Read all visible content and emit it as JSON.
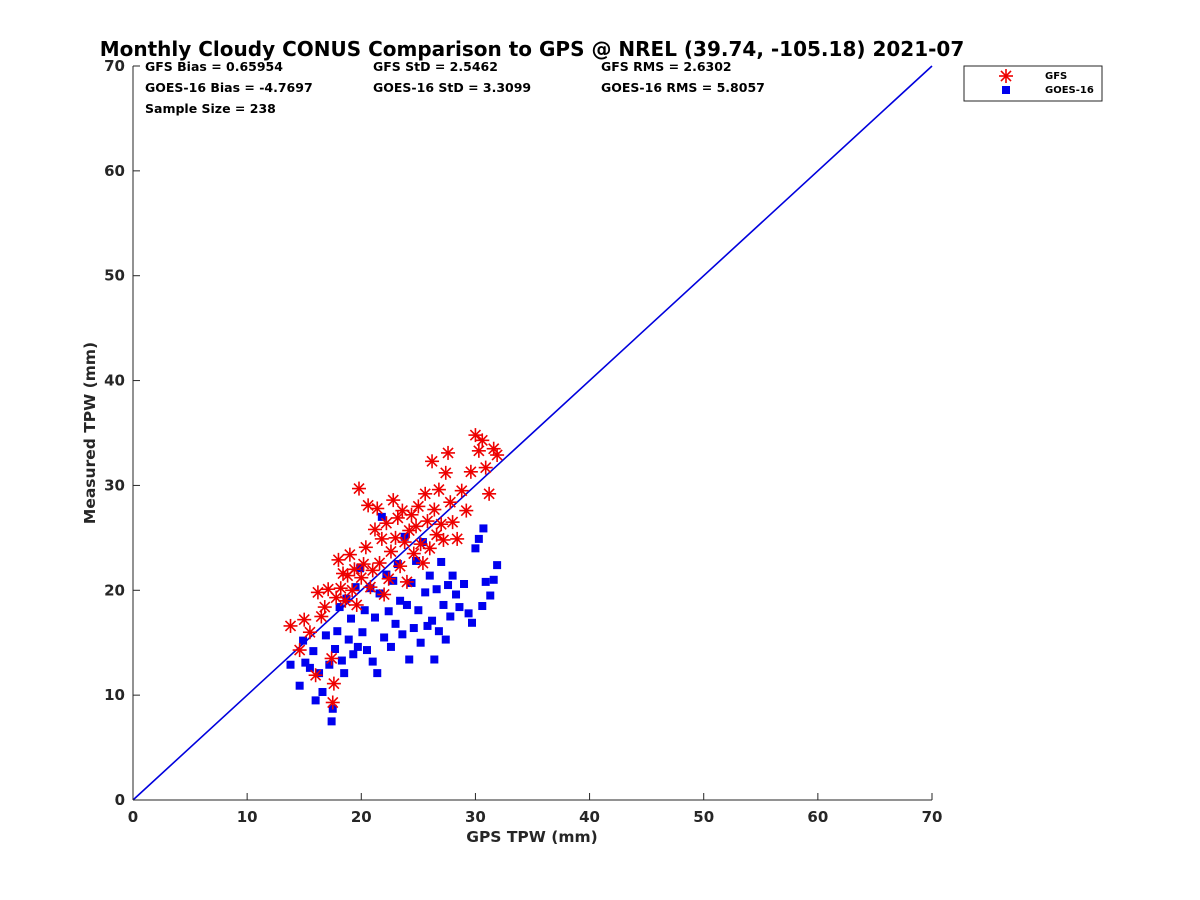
{
  "chart_data": {
    "type": "scatter",
    "title": "Monthly Cloudy CONUS Comparison to GPS @ NREL (39.74, -105.18) 2021-07",
    "xlabel": "GPS TPW (mm)",
    "ylabel": "Measured TPW (mm)",
    "xlim": [
      0,
      70
    ],
    "ylim": [
      0,
      70
    ],
    "xticks": [
      "0",
      "10",
      "20",
      "30",
      "40",
      "50",
      "60",
      "70"
    ],
    "yticks": [
      "0",
      "10",
      "20",
      "30",
      "40",
      "50",
      "60",
      "70"
    ],
    "grid": false,
    "legend_position": "top-right",
    "stats": {
      "gfs_bias": "GFS Bias = 0.65954",
      "gfs_std": "GFS StD = 2.5462",
      "gfs_rms": "GFS RMS = 2.6302",
      "goes_bias": "GOES-16 Bias = -4.7697",
      "goes_std": "GOES-16 StD = 3.3099",
      "goes_rms": "GOES-16 RMS = 5.8057",
      "sample_size": "Sample Size = 238"
    },
    "reference_line": {
      "x": [
        0,
        70
      ],
      "y": [
        0,
        70
      ],
      "color": "#0000dd"
    },
    "series": [
      {
        "name": "GFS",
        "marker": "asterisk",
        "color": "#ee0000",
        "points": [
          [
            13.8,
            16.6
          ],
          [
            14.6,
            14.3
          ],
          [
            15.0,
            17.2
          ],
          [
            15.5,
            16.0
          ],
          [
            16.0,
            11.9
          ],
          [
            16.2,
            19.8
          ],
          [
            16.5,
            17.5
          ],
          [
            16.8,
            18.4
          ],
          [
            17.1,
            20.1
          ],
          [
            17.4,
            13.5
          ],
          [
            17.5,
            9.3
          ],
          [
            17.6,
            11.1
          ],
          [
            17.8,
            19.3
          ],
          [
            18.0,
            22.9
          ],
          [
            18.2,
            20.2
          ],
          [
            18.4,
            21.6
          ],
          [
            18.6,
            19.0
          ],
          [
            18.8,
            21.4
          ],
          [
            19.0,
            23.4
          ],
          [
            19.2,
            20.0
          ],
          [
            19.4,
            22.0
          ],
          [
            19.6,
            18.6
          ],
          [
            19.8,
            29.7
          ],
          [
            20.0,
            21.2
          ],
          [
            20.2,
            22.5
          ],
          [
            20.4,
            24.1
          ],
          [
            20.6,
            28.1
          ],
          [
            20.8,
            20.3
          ],
          [
            21.0,
            21.9
          ],
          [
            21.2,
            25.8
          ],
          [
            21.4,
            27.8
          ],
          [
            21.6,
            22.6
          ],
          [
            21.8,
            24.9
          ],
          [
            22.0,
            19.6
          ],
          [
            22.2,
            26.4
          ],
          [
            22.4,
            21.1
          ],
          [
            22.6,
            23.7
          ],
          [
            22.8,
            28.6
          ],
          [
            23.0,
            25.0
          ],
          [
            23.2,
            26.9
          ],
          [
            23.4,
            22.3
          ],
          [
            23.6,
            27.6
          ],
          [
            23.8,
            24.6
          ],
          [
            24.0,
            20.8
          ],
          [
            24.2,
            25.7
          ],
          [
            24.4,
            27.2
          ],
          [
            24.6,
            23.5
          ],
          [
            24.8,
            26.1
          ],
          [
            25.0,
            28.0
          ],
          [
            25.2,
            24.4
          ],
          [
            25.4,
            22.6
          ],
          [
            25.6,
            29.2
          ],
          [
            25.8,
            26.6
          ],
          [
            26.0,
            24.0
          ],
          [
            26.2,
            32.3
          ],
          [
            26.4,
            27.7
          ],
          [
            26.6,
            25.3
          ],
          [
            26.8,
            29.6
          ],
          [
            27.0,
            26.3
          ],
          [
            27.2,
            24.8
          ],
          [
            27.4,
            31.2
          ],
          [
            27.6,
            33.1
          ],
          [
            27.8,
            28.4
          ],
          [
            28.0,
            26.5
          ],
          [
            28.4,
            24.9
          ],
          [
            28.8,
            29.5
          ],
          [
            29.2,
            27.6
          ],
          [
            29.6,
            31.3
          ],
          [
            30.0,
            34.8
          ],
          [
            30.3,
            33.3
          ],
          [
            30.6,
            34.3
          ],
          [
            30.9,
            31.7
          ],
          [
            31.2,
            29.2
          ],
          [
            31.6,
            33.5
          ],
          [
            31.9,
            32.9
          ]
        ]
      },
      {
        "name": "GOES-16",
        "marker": "square",
        "color": "#0000ee",
        "points": [
          [
            13.8,
            12.9
          ],
          [
            14.6,
            10.9
          ],
          [
            14.9,
            15.2
          ],
          [
            15.1,
            13.1
          ],
          [
            15.5,
            12.6
          ],
          [
            15.8,
            14.2
          ],
          [
            16.0,
            9.5
          ],
          [
            16.3,
            12.1
          ],
          [
            16.6,
            10.3
          ],
          [
            16.9,
            15.7
          ],
          [
            17.2,
            12.9
          ],
          [
            17.4,
            7.5
          ],
          [
            17.5,
            8.7
          ],
          [
            17.7,
            14.4
          ],
          [
            17.9,
            16.1
          ],
          [
            18.1,
            18.4
          ],
          [
            18.3,
            13.3
          ],
          [
            18.5,
            12.1
          ],
          [
            18.7,
            19.2
          ],
          [
            18.9,
            15.3
          ],
          [
            19.1,
            17.3
          ],
          [
            19.3,
            13.9
          ],
          [
            19.5,
            20.3
          ],
          [
            19.7,
            14.6
          ],
          [
            19.9,
            22.1
          ],
          [
            20.1,
            16.0
          ],
          [
            20.3,
            18.1
          ],
          [
            20.5,
            14.3
          ],
          [
            20.8,
            20.2
          ],
          [
            21.0,
            13.2
          ],
          [
            21.2,
            17.4
          ],
          [
            21.4,
            12.1
          ],
          [
            21.6,
            19.7
          ],
          [
            21.8,
            27.0
          ],
          [
            22.0,
            15.5
          ],
          [
            22.2,
            21.5
          ],
          [
            22.4,
            18.0
          ],
          [
            22.6,
            14.6
          ],
          [
            22.8,
            20.9
          ],
          [
            23.0,
            16.8
          ],
          [
            23.2,
            22.5
          ],
          [
            23.4,
            19.0
          ],
          [
            23.6,
            15.8
          ],
          [
            23.8,
            25.1
          ],
          [
            24.0,
            18.6
          ],
          [
            24.2,
            13.4
          ],
          [
            24.4,
            20.7
          ],
          [
            24.6,
            16.4
          ],
          [
            24.8,
            22.8
          ],
          [
            25.0,
            18.1
          ],
          [
            25.2,
            15.0
          ],
          [
            25.4,
            24.6
          ],
          [
            25.6,
            19.8
          ],
          [
            25.8,
            16.6
          ],
          [
            26.0,
            21.4
          ],
          [
            26.2,
            17.1
          ],
          [
            26.4,
            13.4
          ],
          [
            26.6,
            20.1
          ],
          [
            26.8,
            16.1
          ],
          [
            27.0,
            22.7
          ],
          [
            27.2,
            18.6
          ],
          [
            27.4,
            15.3
          ],
          [
            27.6,
            20.5
          ],
          [
            27.8,
            17.5
          ],
          [
            28.0,
            21.4
          ],
          [
            28.3,
            19.6
          ],
          [
            28.6,
            18.4
          ],
          [
            29.0,
            20.6
          ],
          [
            29.4,
            17.8
          ],
          [
            29.7,
            16.9
          ],
          [
            30.0,
            24.0
          ],
          [
            30.3,
            24.9
          ],
          [
            30.6,
            18.5
          ],
          [
            30.9,
            20.8
          ],
          [
            31.3,
            19.5
          ],
          [
            31.6,
            21.0
          ],
          [
            31.9,
            22.4
          ],
          [
            30.7,
            25.9
          ]
        ]
      }
    ]
  }
}
